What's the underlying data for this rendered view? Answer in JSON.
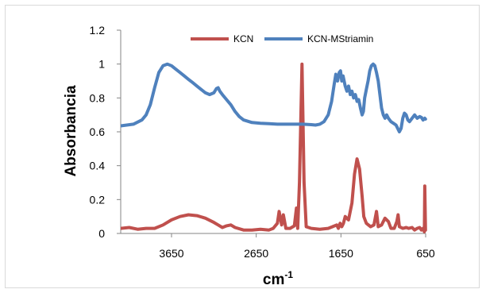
{
  "chart_data": {
    "type": "line",
    "title": "",
    "xlabel": "cm-1",
    "xlabel_base": "cm",
    "xlabel_sup": "-1",
    "ylabel": "Absorbancia",
    "x_reversed": true,
    "xlim": [
      4250,
      650
    ],
    "ylim": [
      0,
      1.2
    ],
    "x_ticks": [
      3650,
      2650,
      1650,
      650
    ],
    "x_tick_labels": [
      "3650",
      "2650",
      "1650",
      "650"
    ],
    "y_ticks": [
      0,
      0.2,
      0.4,
      0.6,
      0.8,
      1,
      1.2
    ],
    "y_tick_labels": [
      "0",
      "0.2",
      "0.4",
      "0.6",
      "0.8",
      "1",
      "1.2"
    ],
    "grid": false,
    "legend_position": "top",
    "series": [
      {
        "name": "KCN",
        "color": "#c0504d",
        "points": [
          [
            4250,
            0.03
          ],
          [
            4150,
            0.035
          ],
          [
            4050,
            0.025
          ],
          [
            3950,
            0.03
          ],
          [
            3850,
            0.03
          ],
          [
            3750,
            0.05
          ],
          [
            3650,
            0.08
          ],
          [
            3550,
            0.1
          ],
          [
            3450,
            0.11
          ],
          [
            3350,
            0.105
          ],
          [
            3250,
            0.09
          ],
          [
            3150,
            0.065
          ],
          [
            3100,
            0.05
          ],
          [
            3050,
            0.035
          ],
          [
            3000,
            0.045
          ],
          [
            2950,
            0.05
          ],
          [
            2900,
            0.035
          ],
          [
            2800,
            0.02
          ],
          [
            2700,
            0.02
          ],
          [
            2600,
            0.025
          ],
          [
            2500,
            0.02
          ],
          [
            2450,
            0.03
          ],
          [
            2400,
            0.06
          ],
          [
            2380,
            0.13
          ],
          [
            2350,
            0.05
          ],
          [
            2330,
            0.11
          ],
          [
            2300,
            0.03
          ],
          [
            2250,
            0.03
          ],
          [
            2200,
            0.045
          ],
          [
            2175,
            0.15
          ],
          [
            2160,
            0.03
          ],
          [
            2140,
            0.3
          ],
          [
            2110,
            1.0
          ],
          [
            2085,
            0.3
          ],
          [
            2060,
            0.04
          ],
          [
            2000,
            0.03
          ],
          [
            1900,
            0.025
          ],
          [
            1800,
            0.03
          ],
          [
            1750,
            0.04
          ],
          [
            1700,
            0.05
          ],
          [
            1680,
            0.03
          ],
          [
            1660,
            0.06
          ],
          [
            1640,
            0.04
          ],
          [
            1620,
            0.06
          ],
          [
            1600,
            0.1
          ],
          [
            1560,
            0.08
          ],
          [
            1520,
            0.18
          ],
          [
            1490,
            0.35
          ],
          [
            1460,
            0.44
          ],
          [
            1430,
            0.38
          ],
          [
            1400,
            0.22
          ],
          [
            1380,
            0.1
          ],
          [
            1350,
            0.06
          ],
          [
            1300,
            0.04
          ],
          [
            1260,
            0.05
          ],
          [
            1230,
            0.13
          ],
          [
            1210,
            0.04
          ],
          [
            1170,
            0.05
          ],
          [
            1130,
            0.09
          ],
          [
            1090,
            0.07
          ],
          [
            1060,
            0.03
          ],
          [
            1020,
            0.03
          ],
          [
            990,
            0.07
          ],
          [
            975,
            0.11
          ],
          [
            960,
            0.04
          ],
          [
            920,
            0.03
          ],
          [
            880,
            0.035
          ],
          [
            850,
            0.03
          ],
          [
            810,
            0.035
          ],
          [
            780,
            0.02
          ],
          [
            750,
            0.03
          ],
          [
            720,
            0.035
          ],
          [
            700,
            0.02
          ],
          [
            680,
            0.03
          ],
          [
            665,
            0.01
          ],
          [
            660,
            0.28
          ],
          [
            652,
            0.02
          ]
        ]
      },
      {
        "name": "KCN-MStriamin",
        "color": "#4f81bd",
        "points": [
          [
            4250,
            0.635
          ],
          [
            4100,
            0.645
          ],
          [
            4000,
            0.67
          ],
          [
            3950,
            0.7
          ],
          [
            3900,
            0.76
          ],
          [
            3850,
            0.86
          ],
          [
            3800,
            0.95
          ],
          [
            3750,
            0.99
          ],
          [
            3700,
            1.0
          ],
          [
            3650,
            0.99
          ],
          [
            3600,
            0.97
          ],
          [
            3550,
            0.95
          ],
          [
            3500,
            0.93
          ],
          [
            3450,
            0.91
          ],
          [
            3400,
            0.89
          ],
          [
            3350,
            0.87
          ],
          [
            3300,
            0.85
          ],
          [
            3250,
            0.83
          ],
          [
            3200,
            0.82
          ],
          [
            3150,
            0.83
          ],
          [
            3120,
            0.855
          ],
          [
            3100,
            0.86
          ],
          [
            3080,
            0.84
          ],
          [
            3050,
            0.82
          ],
          [
            3000,
            0.79
          ],
          [
            2950,
            0.76
          ],
          [
            2900,
            0.72
          ],
          [
            2850,
            0.69
          ],
          [
            2800,
            0.67
          ],
          [
            2700,
            0.655
          ],
          [
            2600,
            0.65
          ],
          [
            2500,
            0.648
          ],
          [
            2400,
            0.645
          ],
          [
            2300,
            0.645
          ],
          [
            2200,
            0.645
          ],
          [
            2100,
            0.645
          ],
          [
            2000,
            0.642
          ],
          [
            1950,
            0.64
          ],
          [
            1900,
            0.645
          ],
          [
            1850,
            0.66
          ],
          [
            1800,
            0.7
          ],
          [
            1760,
            0.78
          ],
          [
            1730,
            0.88
          ],
          [
            1710,
            0.94
          ],
          [
            1690,
            0.9
          ],
          [
            1670,
            0.95
          ],
          [
            1655,
            0.96
          ],
          [
            1640,
            0.9
          ],
          [
            1625,
            0.93
          ],
          [
            1600,
            0.87
          ],
          [
            1580,
            0.84
          ],
          [
            1560,
            0.87
          ],
          [
            1540,
            0.82
          ],
          [
            1520,
            0.84
          ],
          [
            1500,
            0.8
          ],
          [
            1480,
            0.82
          ],
          [
            1460,
            0.78
          ],
          [
            1440,
            0.79
          ],
          [
            1420,
            0.74
          ],
          [
            1400,
            0.7
          ],
          [
            1385,
            0.72
          ],
          [
            1370,
            0.8
          ],
          [
            1350,
            0.85
          ],
          [
            1330,
            0.9
          ],
          [
            1310,
            0.96
          ],
          [
            1290,
            0.99
          ],
          [
            1270,
            1.0
          ],
          [
            1250,
            0.99
          ],
          [
            1230,
            0.95
          ],
          [
            1210,
            0.9
          ],
          [
            1190,
            0.82
          ],
          [
            1170,
            0.74
          ],
          [
            1150,
            0.7
          ],
          [
            1130,
            0.68
          ],
          [
            1110,
            0.7
          ],
          [
            1090,
            0.68
          ],
          [
            1060,
            0.66
          ],
          [
            1030,
            0.65
          ],
          [
            1000,
            0.64
          ],
          [
            980,
            0.62
          ],
          [
            960,
            0.6
          ],
          [
            940,
            0.62
          ],
          [
            920,
            0.68
          ],
          [
            900,
            0.71
          ],
          [
            880,
            0.7
          ],
          [
            860,
            0.67
          ],
          [
            840,
            0.66
          ],
          [
            810,
            0.68
          ],
          [
            780,
            0.7
          ],
          [
            750,
            0.68
          ],
          [
            720,
            0.69
          ],
          [
            700,
            0.685
          ],
          [
            680,
            0.67
          ],
          [
            660,
            0.68
          ],
          [
            652,
            0.675
          ]
        ]
      }
    ]
  }
}
